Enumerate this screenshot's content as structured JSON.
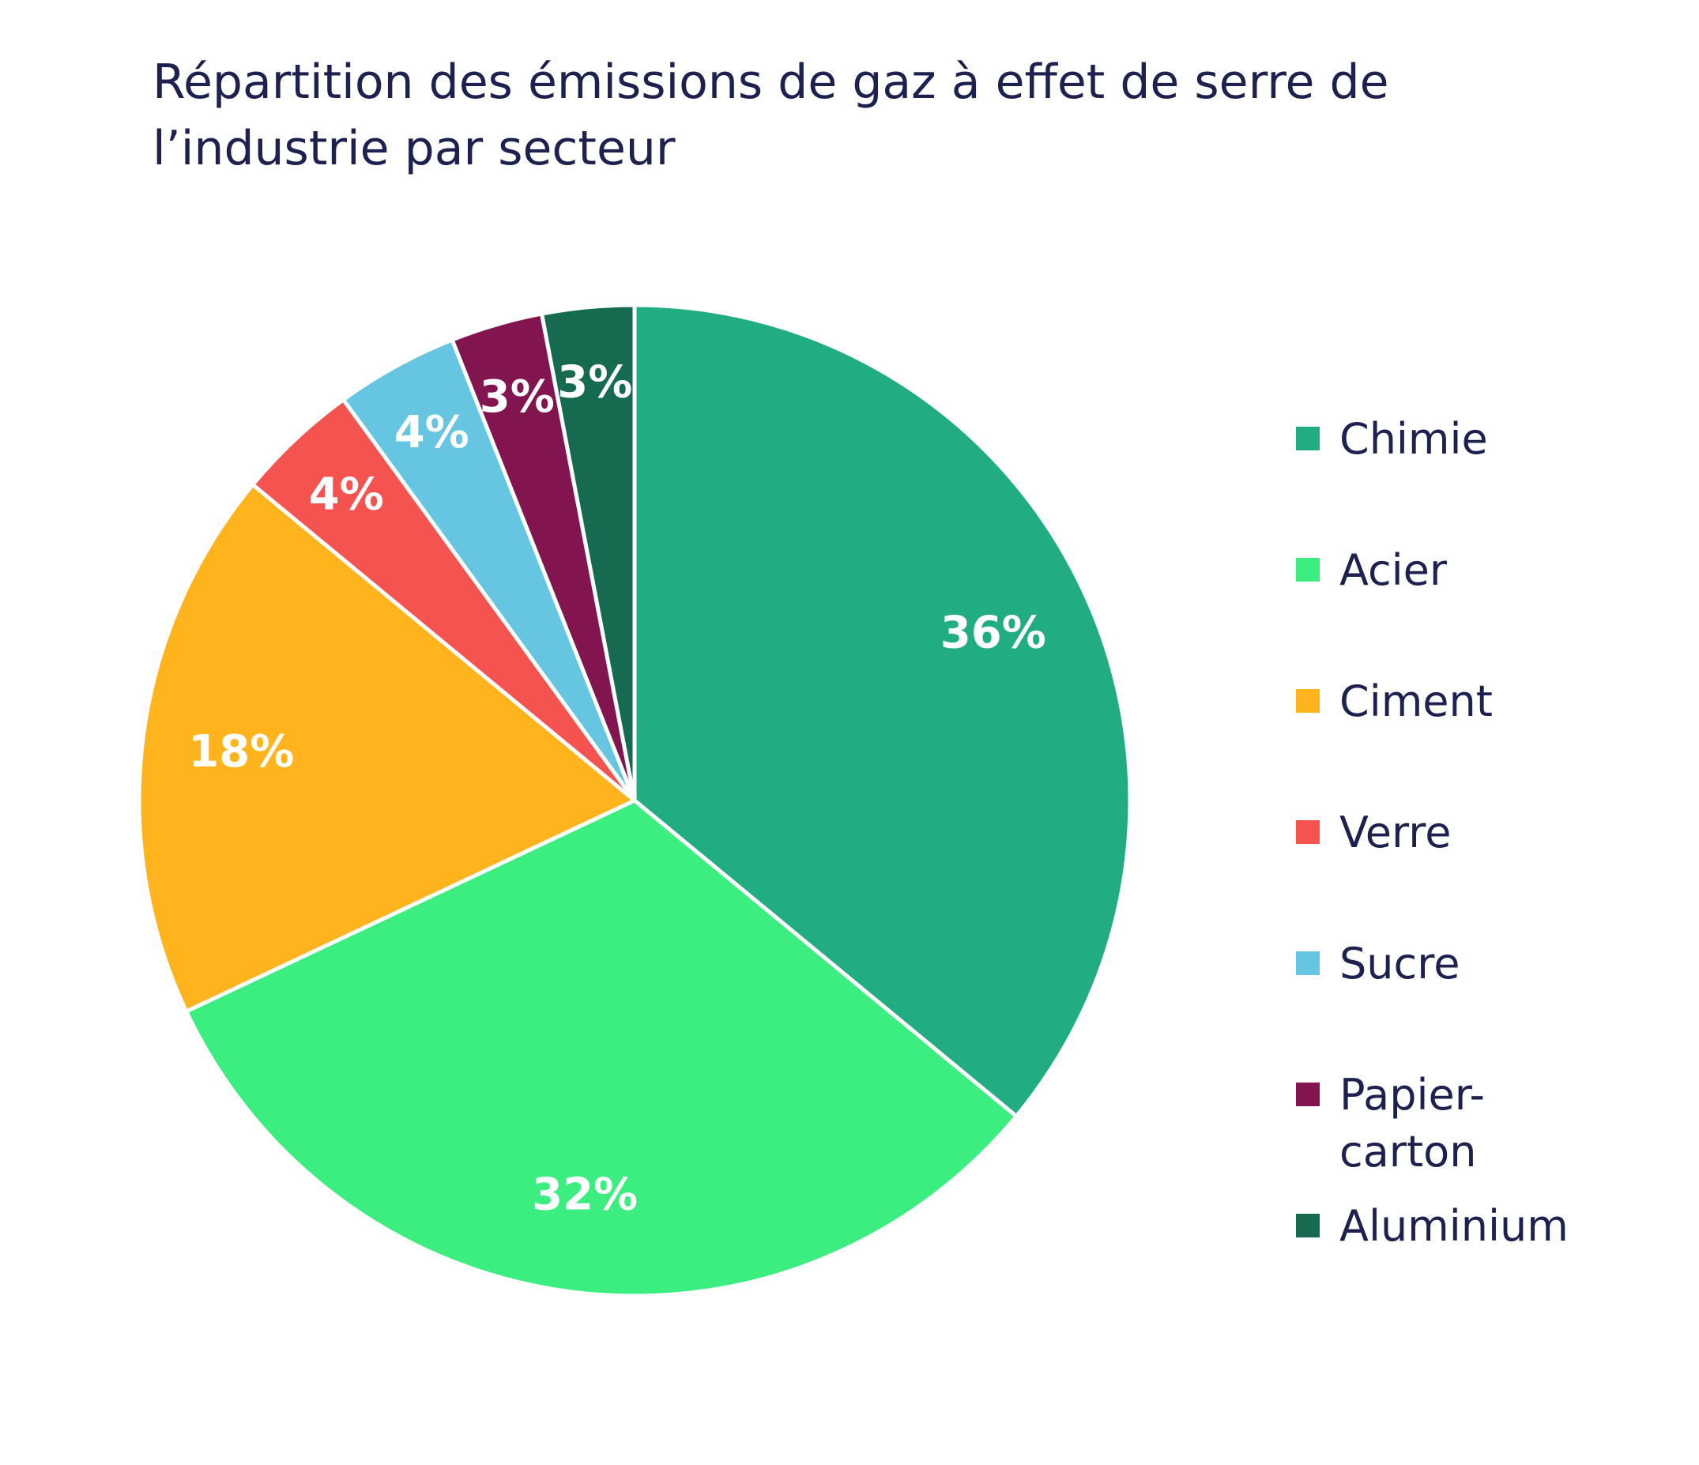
{
  "chart_data": {
    "type": "pie",
    "title": "Répartition des émissions de gaz à effet de serre de l’industrie par secteur",
    "categories": [
      "Chimie",
      "Acier",
      "Ciment",
      "Verre",
      "Sucre",
      "Papier-carton",
      "Aluminium"
    ],
    "values": [
      36,
      32,
      18,
      4,
      4,
      3,
      3
    ],
    "data_labels": [
      "36%",
      "32%",
      "18%",
      "4%",
      "4%",
      "3%",
      "3%"
    ],
    "colors": [
      "#22ac82",
      "#3bee7f",
      "#ffb41e",
      "#f45350",
      "#66c6e2",
      "#82154f",
      "#166a4f"
    ],
    "legend_position": "right",
    "start_angle": "top",
    "direction": "clockwise"
  }
}
